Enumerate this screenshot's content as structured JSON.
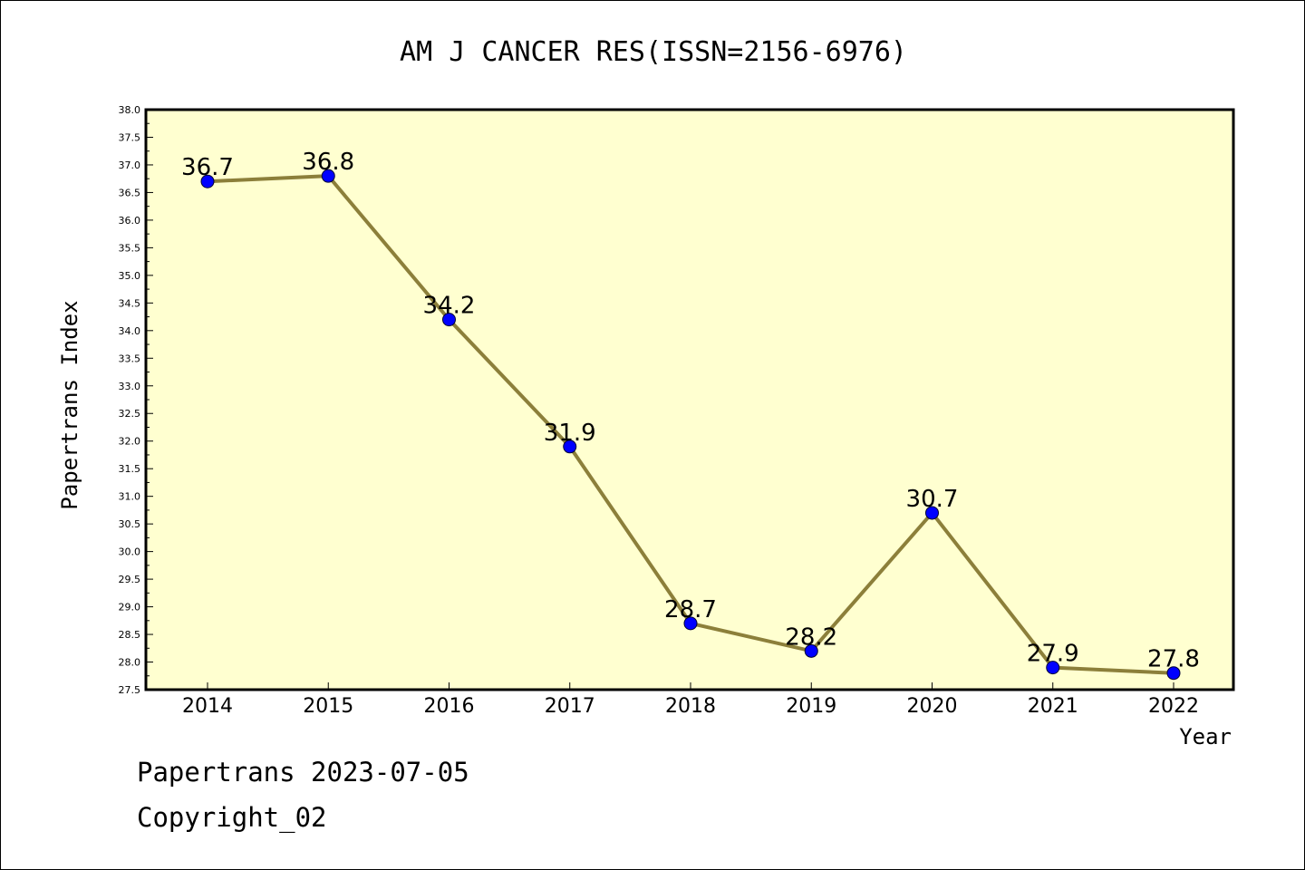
{
  "chart_data": {
    "type": "line",
    "title": "AM J CANCER RES(ISSN=2156-6976)",
    "xlabel": "Year",
    "ylabel": "Papertrans Index",
    "categories": [
      "2014",
      "2015",
      "2016",
      "2017",
      "2018",
      "2019",
      "2020",
      "2021",
      "2022"
    ],
    "values": [
      36.7,
      36.8,
      34.2,
      31.9,
      28.7,
      28.2,
      30.7,
      27.9,
      27.8
    ],
    "data_labels": [
      "36.7",
      "36.8",
      "34.2",
      "31.9",
      "28.7",
      "28.2",
      "30.7",
      "27.9",
      "27.8"
    ],
    "ylim": [
      27.5,
      38.0
    ],
    "y_ticks": [
      "27.5",
      "28.0",
      "28.5",
      "29.0",
      "29.5",
      "30.0",
      "30.5",
      "31.0",
      "31.5",
      "32.0",
      "32.5",
      "33.0",
      "33.5",
      "34.0",
      "34.5",
      "35.0",
      "35.5",
      "36.0",
      "36.5",
      "37.0",
      "37.5",
      "38.0"
    ],
    "grid": false,
    "colors": {
      "plot_background": "#ffffd0",
      "line": "#8c7f3a",
      "marker": "#0000ff"
    }
  },
  "footer": {
    "line1": "Papertrans 2023-07-05",
    "line2": "Copyright_02"
  }
}
